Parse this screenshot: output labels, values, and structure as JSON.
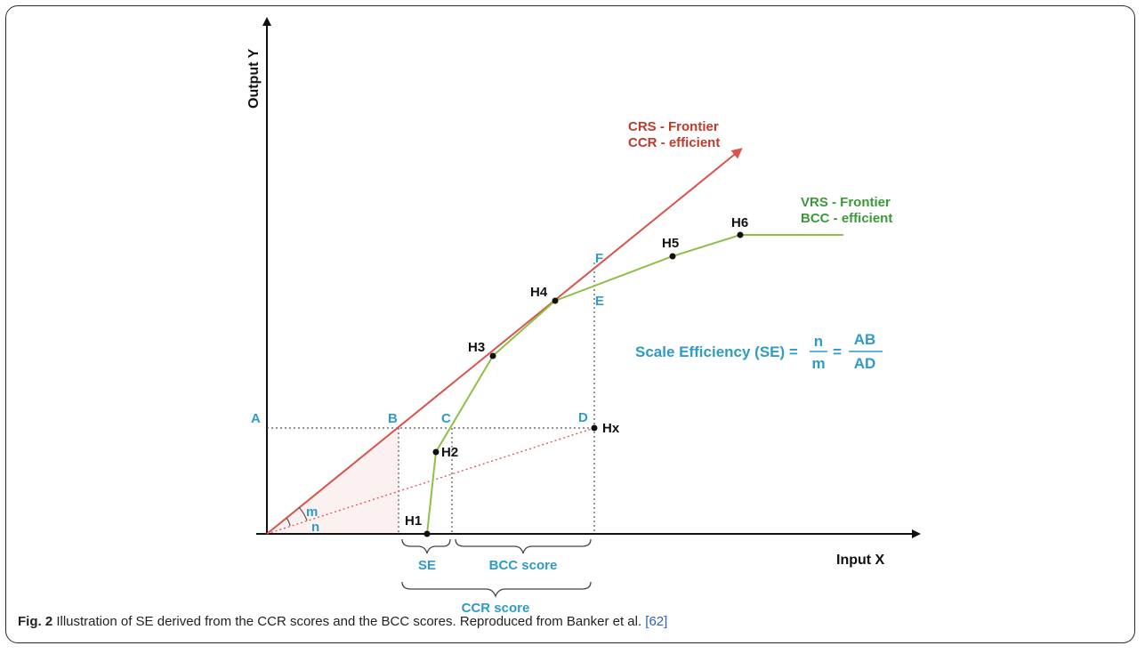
{
  "axes": {
    "y_label": "Output Y",
    "x_label": "Input X"
  },
  "frontiers": {
    "crs_line1": "CRS - Frontier",
    "crs_line2": "CCR - efficient",
    "vrs_line1": "VRS - Frontier",
    "vrs_line2": "BCC - efficient"
  },
  "points": {
    "h1": "H1",
    "h2": "H2",
    "h3": "H3",
    "h4": "H4",
    "h5": "H5",
    "h6": "H6",
    "hx": "Hx"
  },
  "letters": {
    "a": "A",
    "b": "B",
    "c": "C",
    "d": "D",
    "e": "E",
    "f": "F",
    "m": "m",
    "n": "n"
  },
  "formula": {
    "prefix": "Scale Efficiency (SE) =",
    "num1": "n",
    "den1": "m",
    "eq": "=",
    "num2": "AB",
    "den2": "AD"
  },
  "braces": {
    "se": "SE",
    "bcc": "BCC score",
    "ccr": "CCR score"
  },
  "caption": {
    "fig": "Fig. 2",
    "text": " Illustration of SE derived from the CCR scores and the BCC scores. Reproduced from Banker et al. ",
    "ref": "[62]"
  },
  "colors": {
    "crs": "#d9534a",
    "vrs": "#8fc045",
    "green_text": "#3a9a3a",
    "red_text": "#c0392b",
    "cyan": "#2f9bc7",
    "dotted": "#555555"
  }
}
